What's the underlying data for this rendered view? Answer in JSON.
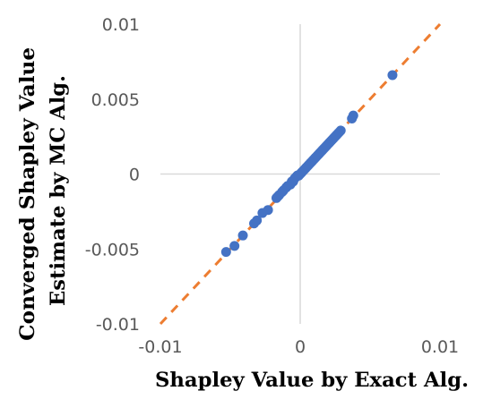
{
  "chart_data": {
    "type": "scatter",
    "title": "",
    "xlabel": "Shapley Value by Exact Alg.",
    "ylabel_lines": [
      "Converged Shapley Value",
      "Estimate by MC Alg."
    ],
    "xlim": [
      -0.01,
      0.01
    ],
    "ylim": [
      -0.01,
      0.01
    ],
    "x_ticks": [
      -0.01,
      0,
      0.01
    ],
    "x_tick_labels": [
      "-0.01",
      "0",
      "0.01"
    ],
    "y_ticks": [
      -0.01,
      -0.005,
      0,
      0.005,
      0.01
    ],
    "y_tick_labels": [
      "-0.01",
      "-0.005",
      "0",
      "0.005",
      "0.01"
    ],
    "grid": false,
    "legend": "none",
    "colors": {
      "points": "#4472C4",
      "reference_line": "#ED7D31",
      "axis": "#D9D9D9"
    },
    "reference_line": {
      "style": "dashed",
      "from": [
        -0.01,
        -0.01
      ],
      "to": [
        0.01,
        0.01
      ]
    },
    "series": [
      {
        "points": [
          [
            -0.0053,
            -0.0052
          ],
          [
            -0.0047,
            -0.0048
          ],
          [
            -0.0041,
            -0.0041
          ],
          [
            -0.0033,
            -0.0033
          ],
          [
            -0.0031,
            -0.0031
          ],
          [
            -0.0027,
            -0.0026
          ],
          [
            -0.0023,
            -0.0024
          ],
          [
            -0.0017,
            -0.0016
          ],
          [
            -0.0016,
            -0.0015
          ],
          [
            -0.0015,
            -0.0014
          ],
          [
            -0.0013,
            -0.0012
          ],
          [
            -0.0012,
            -0.0011
          ],
          [
            -0.001,
            -0.0009
          ],
          [
            -0.0009,
            -0.0008
          ],
          [
            -0.0007,
            -0.0007
          ],
          [
            -0.0006,
            -0.0005
          ],
          [
            -0.0005,
            -0.0005
          ],
          [
            -0.0004,
            -0.0003
          ],
          [
            -0.0003,
            -0.0002
          ],
          [
            -0.0002,
            -0.0001
          ],
          [
            -0.0001,
            -0.0001
          ],
          [
            0.0,
            0.0
          ],
          [
            0.0001,
            0.0001
          ],
          [
            0.0002,
            0.0002
          ],
          [
            0.0003,
            0.0003
          ],
          [
            0.0004,
            0.0004
          ],
          [
            0.0005,
            0.0005
          ],
          [
            0.0006,
            0.0006
          ],
          [
            0.0007,
            0.0007
          ],
          [
            0.0008,
            0.0008
          ],
          [
            0.0009,
            0.0009
          ],
          [
            0.001,
            0.001
          ],
          [
            0.0011,
            0.0011
          ],
          [
            0.0012,
            0.0012
          ],
          [
            0.0013,
            0.0013
          ],
          [
            0.0014,
            0.0014
          ],
          [
            0.0015,
            0.0015
          ],
          [
            0.0016,
            0.0016
          ],
          [
            0.0017,
            0.0017
          ],
          [
            0.0018,
            0.0018
          ],
          [
            0.0019,
            0.0019
          ],
          [
            0.002,
            0.002
          ],
          [
            0.0021,
            0.0021
          ],
          [
            0.0022,
            0.0022
          ],
          [
            0.0023,
            0.0023
          ],
          [
            0.0024,
            0.0024
          ],
          [
            0.0025,
            0.0025
          ],
          [
            0.0026,
            0.0026
          ],
          [
            0.0027,
            0.0027
          ],
          [
            0.0028,
            0.0028
          ],
          [
            0.0029,
            0.0029
          ],
          [
            0.0037,
            0.0037
          ],
          [
            0.0038,
            0.0039
          ],
          [
            0.0066,
            0.0066
          ]
        ]
      }
    ]
  }
}
